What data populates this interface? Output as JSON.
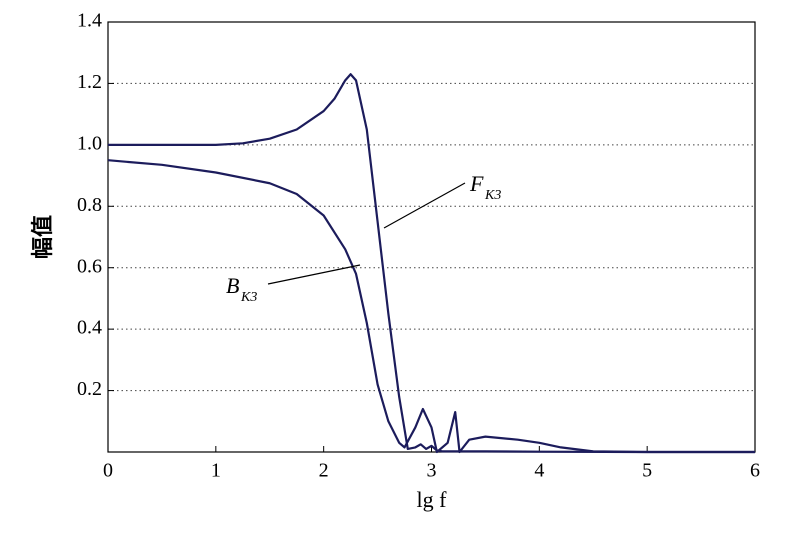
{
  "chart_data": {
    "type": "line",
    "xlabel": "lg f",
    "ylabel": "幅值",
    "xlim": [
      0,
      6
    ],
    "xticks": [
      0,
      1,
      2,
      3,
      4,
      5,
      6
    ],
    "ylim": [
      0,
      1.4
    ],
    "yticks": [
      0.2,
      0.4,
      0.6,
      0.8,
      {
        "value": 1,
        "label": "1.0"
      },
      1.2,
      1.4
    ],
    "grid": true,
    "color": "#1c1c5c",
    "series": [
      {
        "x": [
          0,
          0.5,
          1,
          1.25,
          1.5,
          1.75,
          2,
          2.1,
          2.2,
          2.25,
          2.3,
          2.4,
          2.5,
          2.6,
          2.7,
          2.78,
          2.85,
          2.9,
          2.95,
          3.0,
          3.05,
          3.1,
          3.5,
          4,
          5,
          6
        ],
        "values": [
          1,
          1,
          1,
          1.005,
          1.02,
          1.05,
          1.11,
          1.15,
          1.21,
          1.23,
          1.21,
          1.05,
          0.75,
          0.45,
          0.18,
          0.01,
          0.015,
          0.025,
          0.01,
          0.02,
          0.005,
          0.002,
          0.002,
          0.001,
          0,
          0
        ]
      },
      {
        "x": [
          0,
          0.5,
          1,
          1.5,
          1.75,
          2,
          2.2,
          2.3,
          2.4,
          2.5,
          2.6,
          2.7,
          2.75,
          2.85,
          2.92,
          3,
          3.05,
          3.15,
          3.22,
          3.26,
          3.35,
          3.5,
          3.8,
          4,
          4.2,
          4.5,
          5,
          6
        ],
        "values": [
          0.95,
          0.935,
          0.91,
          0.875,
          0.84,
          0.77,
          0.66,
          0.58,
          0.42,
          0.22,
          0.1,
          0.03,
          0.015,
          0.08,
          0.14,
          0.08,
          0,
          0.03,
          0.13,
          0,
          0.04,
          0.05,
          0.04,
          0.03,
          0.015,
          0.002,
          0,
          0
        ]
      }
    ],
    "annotations": [
      {
        "text": "F",
        "sub": "K3"
      },
      {
        "text": "B",
        "sub": "K3"
      }
    ]
  }
}
